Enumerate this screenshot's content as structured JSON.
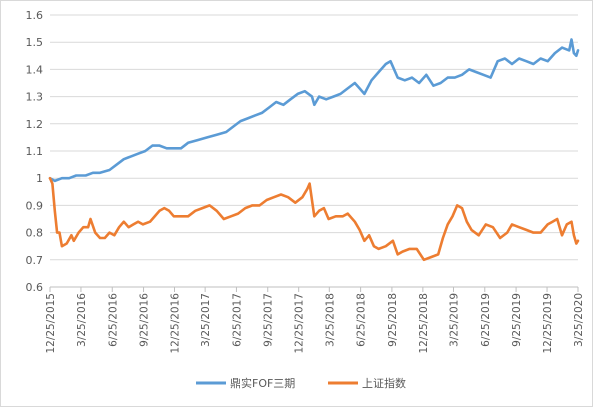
{
  "chart_data": {
    "type": "line",
    "title": "",
    "xlabel": "",
    "ylabel": "",
    "ylim": [
      0.6,
      1.6
    ],
    "yticks": [
      "0.6",
      "0.7",
      "0.8",
      "0.9",
      "1",
      "1.1",
      "1.2",
      "1.3",
      "1.4",
      "1.5",
      "1.6"
    ],
    "xrange": [
      "2015-12-25",
      "2020-03-25"
    ],
    "xticks": [
      "12/25/2015",
      "3/25/2016",
      "6/25/2016",
      "9/25/2016",
      "12/25/2016",
      "3/25/2017",
      "6/25/2017",
      "9/25/2017",
      "12/25/2017",
      "3/25/2018",
      "6/25/2018",
      "9/25/2018",
      "12/25/2018",
      "3/25/2019",
      "6/25/2019",
      "9/25/2019",
      "12/25/2019",
      "3/25/2020"
    ],
    "grid": "horizontal",
    "legend": "bottom",
    "series": [
      {
        "name": "鼎实FOF三期",
        "color": "#5b9bd5",
        "points": [
          [
            "2015-12-25",
            1.0
          ],
          [
            "2016-01-08",
            0.99
          ],
          [
            "2016-01-29",
            1.0
          ],
          [
            "2016-02-19",
            1.0
          ],
          [
            "2016-03-11",
            1.01
          ],
          [
            "2016-04-08",
            1.01
          ],
          [
            "2016-04-29",
            1.02
          ],
          [
            "2016-05-20",
            1.02
          ],
          [
            "2016-06-17",
            1.03
          ],
          [
            "2016-07-08",
            1.05
          ],
          [
            "2016-07-29",
            1.07
          ],
          [
            "2016-08-19",
            1.08
          ],
          [
            "2016-09-09",
            1.09
          ],
          [
            "2016-09-30",
            1.1
          ],
          [
            "2016-10-21",
            1.12
          ],
          [
            "2016-11-11",
            1.12
          ],
          [
            "2016-12-02",
            1.11
          ],
          [
            "2016-12-23",
            1.11
          ],
          [
            "2017-01-13",
            1.11
          ],
          [
            "2017-02-03",
            1.13
          ],
          [
            "2017-03-03",
            1.14
          ],
          [
            "2017-03-31",
            1.15
          ],
          [
            "2017-04-28",
            1.16
          ],
          [
            "2017-05-26",
            1.17
          ],
          [
            "2017-06-16",
            1.19
          ],
          [
            "2017-07-07",
            1.21
          ],
          [
            "2017-07-28",
            1.22
          ],
          [
            "2017-08-18",
            1.23
          ],
          [
            "2017-09-08",
            1.24
          ],
          [
            "2017-09-29",
            1.26
          ],
          [
            "2017-10-20",
            1.28
          ],
          [
            "2017-11-10",
            1.27
          ],
          [
            "2017-12-01",
            1.29
          ],
          [
            "2017-12-22",
            1.31
          ],
          [
            "2018-01-12",
            1.32
          ],
          [
            "2018-02-02",
            1.3
          ],
          [
            "2018-02-09",
            1.27
          ],
          [
            "2018-02-23",
            1.3
          ],
          [
            "2018-03-16",
            1.29
          ],
          [
            "2018-04-06",
            1.3
          ],
          [
            "2018-04-27",
            1.31
          ],
          [
            "2018-05-18",
            1.33
          ],
          [
            "2018-06-08",
            1.35
          ],
          [
            "2018-06-22",
            1.33
          ],
          [
            "2018-07-06",
            1.31
          ],
          [
            "2018-07-27",
            1.36
          ],
          [
            "2018-08-17",
            1.39
          ],
          [
            "2018-09-07",
            1.42
          ],
          [
            "2018-09-21",
            1.43
          ],
          [
            "2018-10-12",
            1.37
          ],
          [
            "2018-11-02",
            1.36
          ],
          [
            "2018-11-23",
            1.37
          ],
          [
            "2018-12-14",
            1.35
          ],
          [
            "2019-01-04",
            1.38
          ],
          [
            "2019-01-25",
            1.34
          ],
          [
            "2019-02-15",
            1.35
          ],
          [
            "2019-03-08",
            1.37
          ],
          [
            "2019-03-29",
            1.37
          ],
          [
            "2019-04-19",
            1.38
          ],
          [
            "2019-05-10",
            1.4
          ],
          [
            "2019-05-31",
            1.39
          ],
          [
            "2019-06-21",
            1.38
          ],
          [
            "2019-07-12",
            1.37
          ],
          [
            "2019-08-02",
            1.43
          ],
          [
            "2019-08-23",
            1.44
          ],
          [
            "2019-09-13",
            1.42
          ],
          [
            "2019-10-04",
            1.44
          ],
          [
            "2019-10-25",
            1.43
          ],
          [
            "2019-11-15",
            1.42
          ],
          [
            "2019-12-06",
            1.44
          ],
          [
            "2019-12-27",
            1.43
          ],
          [
            "2020-01-17",
            1.46
          ],
          [
            "2020-02-07",
            1.48
          ],
          [
            "2020-02-28",
            1.47
          ],
          [
            "2020-03-06",
            1.51
          ],
          [
            "2020-03-13",
            1.46
          ],
          [
            "2020-03-20",
            1.45
          ],
          [
            "2020-03-25",
            1.47
          ]
        ]
      },
      {
        "name": "上证指数",
        "color": "#ed7d31",
        "points": [
          [
            "2015-12-25",
            1.0
          ],
          [
            "2016-01-01",
            0.98
          ],
          [
            "2016-01-08",
            0.88
          ],
          [
            "2016-01-15",
            0.8
          ],
          [
            "2016-01-22",
            0.8
          ],
          [
            "2016-01-29",
            0.75
          ],
          [
            "2016-02-12",
            0.76
          ],
          [
            "2016-02-26",
            0.79
          ],
          [
            "2016-03-04",
            0.77
          ],
          [
            "2016-03-18",
            0.8
          ],
          [
            "2016-04-01",
            0.82
          ],
          [
            "2016-04-15",
            0.82
          ],
          [
            "2016-04-22",
            0.85
          ],
          [
            "2016-05-06",
            0.8
          ],
          [
            "2016-05-20",
            0.78
          ],
          [
            "2016-06-03",
            0.78
          ],
          [
            "2016-06-17",
            0.8
          ],
          [
            "2016-07-01",
            0.79
          ],
          [
            "2016-07-15",
            0.82
          ],
          [
            "2016-07-29",
            0.84
          ],
          [
            "2016-08-12",
            0.82
          ],
          [
            "2016-08-26",
            0.83
          ],
          [
            "2016-09-09",
            0.84
          ],
          [
            "2016-09-23",
            0.83
          ],
          [
            "2016-10-14",
            0.84
          ],
          [
            "2016-10-28",
            0.86
          ],
          [
            "2016-11-11",
            0.88
          ],
          [
            "2016-11-25",
            0.89
          ],
          [
            "2016-12-09",
            0.88
          ],
          [
            "2016-12-23",
            0.86
          ],
          [
            "2017-01-13",
            0.86
          ],
          [
            "2017-02-03",
            0.86
          ],
          [
            "2017-02-24",
            0.88
          ],
          [
            "2017-03-17",
            0.89
          ],
          [
            "2017-04-07",
            0.9
          ],
          [
            "2017-04-28",
            0.88
          ],
          [
            "2017-05-19",
            0.85
          ],
          [
            "2017-06-09",
            0.86
          ],
          [
            "2017-06-30",
            0.87
          ],
          [
            "2017-07-21",
            0.89
          ],
          [
            "2017-08-11",
            0.9
          ],
          [
            "2017-09-01",
            0.9
          ],
          [
            "2017-09-22",
            0.92
          ],
          [
            "2017-10-13",
            0.93
          ],
          [
            "2017-11-03",
            0.94
          ],
          [
            "2017-11-24",
            0.93
          ],
          [
            "2017-12-15",
            0.91
          ],
          [
            "2018-01-05",
            0.93
          ],
          [
            "2018-01-19",
            0.96
          ],
          [
            "2018-01-26",
            0.98
          ],
          [
            "2018-02-09",
            0.86
          ],
          [
            "2018-02-23",
            0.88
          ],
          [
            "2018-03-09",
            0.89
          ],
          [
            "2018-03-23",
            0.85
          ],
          [
            "2018-04-13",
            0.86
          ],
          [
            "2018-05-04",
            0.86
          ],
          [
            "2018-05-18",
            0.87
          ],
          [
            "2018-06-08",
            0.84
          ],
          [
            "2018-06-22",
            0.81
          ],
          [
            "2018-07-06",
            0.77
          ],
          [
            "2018-07-20",
            0.79
          ],
          [
            "2018-08-03",
            0.75
          ],
          [
            "2018-08-17",
            0.74
          ],
          [
            "2018-09-07",
            0.75
          ],
          [
            "2018-09-28",
            0.77
          ],
          [
            "2018-10-12",
            0.72
          ],
          [
            "2018-10-26",
            0.73
          ],
          [
            "2018-11-16",
            0.74
          ],
          [
            "2018-12-07",
            0.74
          ],
          [
            "2018-12-28",
            0.7
          ],
          [
            "2019-01-18",
            0.71
          ],
          [
            "2019-02-08",
            0.72
          ],
          [
            "2019-02-22",
            0.78
          ],
          [
            "2019-03-08",
            0.83
          ],
          [
            "2019-03-22",
            0.86
          ],
          [
            "2019-04-05",
            0.9
          ],
          [
            "2019-04-19",
            0.89
          ],
          [
            "2019-05-03",
            0.84
          ],
          [
            "2019-05-17",
            0.81
          ],
          [
            "2019-06-07",
            0.79
          ],
          [
            "2019-06-28",
            0.83
          ],
          [
            "2019-07-19",
            0.82
          ],
          [
            "2019-08-09",
            0.78
          ],
          [
            "2019-08-30",
            0.8
          ],
          [
            "2019-09-13",
            0.83
          ],
          [
            "2019-10-04",
            0.82
          ],
          [
            "2019-10-25",
            0.81
          ],
          [
            "2019-11-15",
            0.8
          ],
          [
            "2019-12-06",
            0.8
          ],
          [
            "2019-12-27",
            0.83
          ],
          [
            "2020-01-10",
            0.84
          ],
          [
            "2020-01-24",
            0.85
          ],
          [
            "2020-02-07",
            0.79
          ],
          [
            "2020-02-21",
            0.83
          ],
          [
            "2020-03-06",
            0.84
          ],
          [
            "2020-03-13",
            0.79
          ],
          [
            "2020-03-20",
            0.76
          ],
          [
            "2020-03-25",
            0.77
          ]
        ]
      }
    ]
  }
}
